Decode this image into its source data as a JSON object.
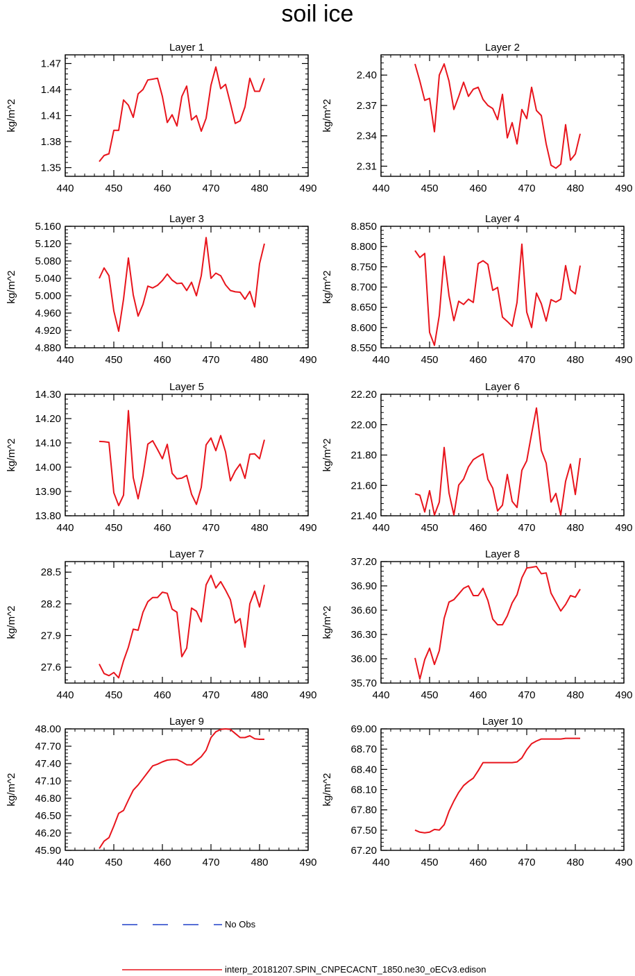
{
  "title": "soil ice",
  "colors": {
    "model": "#e8141c",
    "obs": "#1f3fc8",
    "axis": "#000000"
  },
  "legend": {
    "obs_label": "No Obs",
    "model_label": "interp_20181207.SPIN_CNPECACNT_1850.ne30_oECv3.edison"
  },
  "chart_data": [
    {
      "type": "line",
      "title": "Layer 1",
      "ylabel": "kg/m^2",
      "xlim": [
        440,
        490
      ],
      "xticks": [
        "440",
        "450",
        "460",
        "470",
        "480",
        "490"
      ],
      "ylim": [
        1.34,
        1.48
      ],
      "yticks": [
        "1.35",
        "1.38",
        "1.41",
        "1.44",
        "1.47"
      ],
      "series": [
        {
          "x": [
            447,
            448,
            449,
            450,
            451,
            452,
            453,
            454,
            455,
            456,
            457,
            458,
            459,
            460,
            461,
            462,
            463,
            464,
            465,
            466,
            467,
            468,
            469,
            470,
            471,
            472,
            473,
            474,
            475,
            476,
            477,
            478,
            479,
            480,
            481
          ],
          "y": [
            1.357,
            1.364,
            1.366,
            1.393,
            1.393,
            1.428,
            1.422,
            1.408,
            1.435,
            1.44,
            1.451,
            1.452,
            1.453,
            1.432,
            1.402,
            1.411,
            1.398,
            1.432,
            1.444,
            1.405,
            1.41,
            1.392,
            1.407,
            1.445,
            1.466,
            1.441,
            1.446,
            1.424,
            1.401,
            1.404,
            1.42,
            1.453,
            1.438,
            1.438,
            1.453
          ]
        }
      ]
    },
    {
      "type": "line",
      "title": "Layer 2",
      "ylabel": "kg/m^2",
      "xlim": [
        440,
        490
      ],
      "xticks": [
        "440",
        "450",
        "460",
        "470",
        "480",
        "490"
      ],
      "ylim": [
        2.3,
        2.42
      ],
      "yticks": [
        "2.31",
        "2.34",
        "2.37",
        "2.40"
      ],
      "series": [
        {
          "x": [
            447,
            448,
            449,
            450,
            451,
            452,
            453,
            454,
            455,
            456,
            457,
            458,
            459,
            460,
            461,
            462,
            463,
            464,
            465,
            466,
            467,
            468,
            469,
            470,
            471,
            472,
            473,
            474,
            475,
            476,
            477,
            478,
            479,
            480,
            481
          ],
          "y": [
            2.411,
            2.394,
            2.375,
            2.377,
            2.344,
            2.4,
            2.411,
            2.394,
            2.366,
            2.379,
            2.393,
            2.379,
            2.386,
            2.388,
            2.376,
            2.37,
            2.367,
            2.356,
            2.381,
            2.338,
            2.353,
            2.332,
            2.366,
            2.357,
            2.388,
            2.365,
            2.36,
            2.332,
            2.311,
            2.308,
            2.312,
            2.351,
            2.316,
            2.322,
            2.342
          ]
        }
      ]
    },
    {
      "type": "line",
      "title": "Layer 3",
      "ylabel": "kg/m^2",
      "xlim": [
        440,
        490
      ],
      "xticks": [
        "440",
        "450",
        "460",
        "470",
        "480",
        "490"
      ],
      "ylim": [
        4.88,
        5.16
      ],
      "yticks": [
        "4.880",
        "4.920",
        "4.960",
        "5.000",
        "5.040",
        "5.080",
        "5.120",
        "5.160"
      ],
      "series": [
        {
          "x": [
            447,
            448,
            449,
            450,
            451,
            452,
            453,
            454,
            455,
            456,
            457,
            458,
            459,
            460,
            461,
            462,
            463,
            464,
            465,
            466,
            467,
            468,
            469,
            470,
            471,
            472,
            473,
            474,
            475,
            476,
            477,
            478,
            479,
            480,
            481
          ],
          "y": [
            5.04,
            5.064,
            5.046,
            4.965,
            4.918,
            4.992,
            5.087,
            5.002,
            4.953,
            4.98,
            5.022,
            5.018,
            5.024,
            5.035,
            5.05,
            5.036,
            5.028,
            5.029,
            5.012,
            5.031,
            5.0,
            5.046,
            5.134,
            5.04,
            5.052,
            5.046,
            5.025,
            5.012,
            5.009,
            5.008,
            4.992,
            5.01,
            4.974,
            5.074,
            5.12
          ]
        }
      ]
    },
    {
      "type": "line",
      "title": "Layer 4",
      "ylabel": "kg/m^2",
      "xlim": [
        440,
        490
      ],
      "xticks": [
        "440",
        "450",
        "460",
        "470",
        "480",
        "490"
      ],
      "ylim": [
        8.55,
        8.85
      ],
      "yticks": [
        "8.550",
        "8.600",
        "8.650",
        "8.700",
        "8.750",
        "8.800",
        "8.850"
      ],
      "series": [
        {
          "x": [
            447,
            448,
            449,
            450,
            451,
            452,
            453,
            454,
            455,
            456,
            457,
            458,
            459,
            460,
            461,
            462,
            463,
            464,
            465,
            466,
            467,
            468,
            469,
            470,
            471,
            472,
            473,
            474,
            475,
            476,
            477,
            478,
            479,
            480,
            481
          ],
          "y": [
            8.79,
            8.773,
            8.783,
            8.588,
            8.556,
            8.63,
            8.776,
            8.679,
            8.617,
            8.665,
            8.657,
            8.67,
            8.662,
            8.758,
            8.765,
            8.756,
            8.692,
            8.699,
            8.626,
            8.615,
            8.603,
            8.662,
            8.806,
            8.638,
            8.6,
            8.685,
            8.659,
            8.616,
            8.669,
            8.663,
            8.67,
            8.753,
            8.693,
            8.683,
            8.753
          ]
        }
      ]
    },
    {
      "type": "line",
      "title": "Layer 5",
      "ylabel": "kg/m^2",
      "xlim": [
        440,
        490
      ],
      "xticks": [
        "440",
        "450",
        "460",
        "470",
        "480",
        "490"
      ],
      "ylim": [
        13.8,
        14.3
      ],
      "yticks": [
        "13.80",
        "13.90",
        "14.00",
        "14.10",
        "14.20",
        "14.30"
      ],
      "series": [
        {
          "x": [
            447,
            448,
            449,
            450,
            451,
            452,
            453,
            454,
            455,
            456,
            457,
            458,
            459,
            460,
            461,
            462,
            463,
            464,
            465,
            466,
            467,
            468,
            469,
            470,
            471,
            472,
            473,
            474,
            475,
            476,
            477,
            478,
            479,
            480,
            481
          ],
          "y": [
            14.106,
            14.105,
            14.102,
            13.895,
            13.842,
            13.885,
            14.233,
            13.957,
            13.87,
            13.966,
            14.095,
            14.109,
            14.073,
            14.035,
            14.094,
            13.975,
            13.952,
            13.955,
            13.966,
            13.889,
            13.847,
            13.917,
            14.092,
            14.12,
            14.068,
            14.13,
            14.063,
            13.944,
            13.985,
            14.013,
            13.954,
            14.053,
            14.055,
            14.035,
            14.113
          ]
        }
      ]
    },
    {
      "type": "line",
      "title": "Layer 6",
      "ylabel": "kg/m^2",
      "xlim": [
        440,
        490
      ],
      "xticks": [
        "440",
        "450",
        "460",
        "470",
        "480",
        "490"
      ],
      "ylim": [
        21.4,
        22.2
      ],
      "yticks": [
        "21.40",
        "21.60",
        "21.80",
        "22.00",
        "22.20"
      ],
      "series": [
        {
          "x": [
            447,
            448,
            449,
            450,
            451,
            452,
            453,
            454,
            455,
            456,
            457,
            458,
            459,
            460,
            461,
            462,
            463,
            464,
            465,
            466,
            467,
            468,
            469,
            470,
            471,
            472,
            473,
            474,
            475,
            476,
            477,
            478,
            479,
            480,
            481
          ],
          "y": [
            21.545,
            21.535,
            21.425,
            21.565,
            21.405,
            21.49,
            21.85,
            21.55,
            21.405,
            21.602,
            21.642,
            21.722,
            21.77,
            21.79,
            21.808,
            21.64,
            21.582,
            21.432,
            21.47,
            21.672,
            21.495,
            21.455,
            21.7,
            21.762,
            21.94,
            22.11,
            21.83,
            21.747,
            21.49,
            21.547,
            21.405,
            21.627,
            21.74,
            21.54,
            21.78
          ]
        }
      ]
    },
    {
      "type": "line",
      "title": "Layer 7",
      "ylabel": "kg/m^2",
      "xlim": [
        440,
        490
      ],
      "xticks": [
        "440",
        "450",
        "460",
        "470",
        "480",
        "490"
      ],
      "ylim": [
        27.45,
        28.6
      ],
      "yticks": [
        "27.6",
        "27.9",
        "28.2",
        "28.5"
      ],
      "series": [
        {
          "x": [
            447,
            448,
            449,
            450,
            451,
            452,
            453,
            454,
            455,
            456,
            457,
            458,
            459,
            460,
            461,
            462,
            463,
            464,
            465,
            466,
            467,
            468,
            469,
            470,
            471,
            472,
            473,
            474,
            475,
            476,
            477,
            478,
            479,
            480,
            481
          ],
          "y": [
            27.63,
            27.54,
            27.52,
            27.55,
            27.5,
            27.66,
            27.79,
            27.96,
            27.95,
            28.12,
            28.22,
            28.26,
            28.26,
            28.31,
            28.3,
            28.15,
            28.12,
            27.7,
            27.78,
            28.16,
            28.13,
            28.03,
            28.38,
            28.47,
            28.35,
            28.41,
            28.33,
            28.24,
            28.02,
            28.06,
            27.79,
            28.2,
            28.32,
            28.17,
            28.38
          ]
        }
      ]
    },
    {
      "type": "line",
      "title": "Layer 8",
      "ylabel": "kg/m^2",
      "xlim": [
        440,
        490
      ],
      "xticks": [
        "440",
        "450",
        "460",
        "470",
        "480",
        "490"
      ],
      "ylim": [
        35.7,
        37.2
      ],
      "yticks": [
        "35.70",
        "36.00",
        "36.30",
        "36.60",
        "36.90",
        "37.20"
      ],
      "series": [
        {
          "x": [
            447,
            448,
            449,
            450,
            451,
            452,
            453,
            454,
            455,
            456,
            457,
            458,
            459,
            460,
            461,
            462,
            463,
            464,
            465,
            466,
            467,
            468,
            469,
            470,
            471,
            472,
            473,
            474,
            475,
            476,
            477,
            478,
            479,
            480,
            481
          ],
          "y": [
            36.01,
            35.75,
            35.99,
            36.13,
            35.93,
            36.1,
            36.5,
            36.7,
            36.73,
            36.8,
            36.87,
            36.9,
            36.78,
            36.78,
            36.87,
            36.72,
            36.49,
            36.42,
            36.42,
            36.53,
            36.69,
            36.79,
            37.0,
            37.12,
            37.13,
            37.14,
            37.05,
            37.06,
            36.81,
            36.7,
            36.59,
            36.67,
            36.78,
            36.76,
            36.86
          ]
        }
      ]
    },
    {
      "type": "line",
      "title": "Layer 9",
      "ylabel": "kg/m^2",
      "xlim": [
        440,
        490
      ],
      "xticks": [
        "440",
        "450",
        "460",
        "470",
        "480",
        "490"
      ],
      "ylim": [
        45.9,
        48.0
      ],
      "yticks": [
        "45.90",
        "46.20",
        "46.50",
        "46.80",
        "47.10",
        "47.40",
        "47.70",
        "48.00"
      ],
      "series": [
        {
          "x": [
            447,
            448,
            449,
            450,
            451,
            452,
            453,
            454,
            455,
            456,
            457,
            458,
            459,
            460,
            461,
            462,
            463,
            464,
            465,
            466,
            467,
            468,
            469,
            470,
            471,
            472,
            473,
            474,
            475,
            476,
            477,
            478,
            479,
            480,
            481
          ],
          "y": [
            45.93,
            46.06,
            46.12,
            46.32,
            46.54,
            46.59,
            46.77,
            46.94,
            47.03,
            47.14,
            47.25,
            47.36,
            47.39,
            47.43,
            47.46,
            47.47,
            47.47,
            47.43,
            47.38,
            47.38,
            47.45,
            47.52,
            47.63,
            47.85,
            47.95,
            47.99,
            48.0,
            47.99,
            47.92,
            47.85,
            47.85,
            47.88,
            47.83,
            47.82,
            47.82
          ]
        }
      ]
    },
    {
      "type": "line",
      "title": "Layer 10",
      "ylabel": "kg/m^2",
      "xlim": [
        440,
        490
      ],
      "xticks": [
        "440",
        "450",
        "460",
        "470",
        "480",
        "490"
      ],
      "ylim": [
        67.2,
        69.0
      ],
      "yticks": [
        "67.20",
        "67.50",
        "67.80",
        "68.10",
        "68.40",
        "68.70",
        "69.00"
      ],
      "series": [
        {
          "x": [
            447,
            448,
            449,
            450,
            451,
            452,
            453,
            454,
            455,
            456,
            457,
            458,
            459,
            460,
            461,
            462,
            463,
            464,
            465,
            466,
            467,
            468,
            469,
            470,
            471,
            472,
            473,
            474,
            475,
            476,
            477,
            478,
            479,
            480,
            481
          ],
          "y": [
            67.5,
            67.47,
            67.46,
            67.47,
            67.51,
            67.5,
            67.58,
            67.78,
            67.93,
            68.06,
            68.16,
            68.22,
            68.27,
            68.38,
            68.5,
            68.5,
            68.5,
            68.5,
            68.5,
            68.5,
            68.5,
            68.51,
            68.57,
            68.69,
            68.78,
            68.82,
            68.85,
            68.85,
            68.85,
            68.85,
            68.85,
            68.86,
            68.86,
            68.86,
            68.86
          ]
        }
      ]
    }
  ]
}
